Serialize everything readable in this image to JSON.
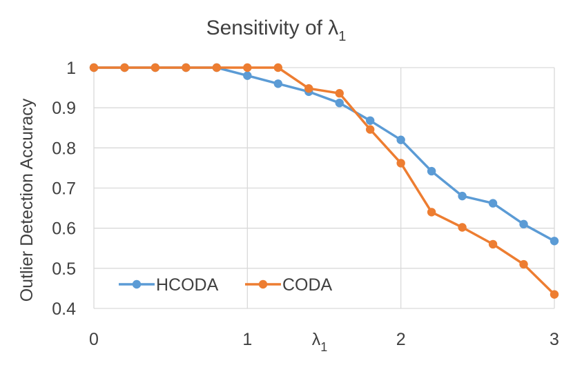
{
  "chart_data": {
    "type": "line",
    "title": "Sensitivity of λ",
    "title_subscript": "1",
    "xlabel": "λ",
    "xlabel_subscript": "1",
    "ylabel": "Outlier Detection Accuracy",
    "xlim": [
      0,
      3
    ],
    "ylim": [
      0.4,
      1.0
    ],
    "x_ticks": [
      0,
      1,
      2,
      3
    ],
    "y_ticks": [
      0.4,
      0.5,
      0.6,
      0.7,
      0.8,
      0.9,
      1.0
    ],
    "x_tick_labels": [
      "0",
      "1",
      "2",
      "3"
    ],
    "y_tick_labels": [
      "0.4",
      "0.5",
      "0.6",
      "0.7",
      "0.8",
      "0.9",
      "1"
    ],
    "grid": true,
    "legend_position": "bottom-left",
    "x": [
      0,
      0.2,
      0.4,
      0.6,
      0.8,
      1.0,
      1.2,
      1.4,
      1.6,
      1.8,
      2.0,
      2.2,
      2.4,
      2.6,
      2.8,
      3.0
    ],
    "series": [
      {
        "name": "HCODA",
        "color": "#5b9bd5",
        "values": [
          1.0,
          1.0,
          1.0,
          1.0,
          1.0,
          0.98,
          0.96,
          0.94,
          0.912,
          0.868,
          0.82,
          0.742,
          0.68,
          0.662,
          0.61,
          0.568
        ]
      },
      {
        "name": "CODA",
        "color": "#ed7d31",
        "values": [
          1.0,
          1.0,
          1.0,
          1.0,
          1.0,
          1.0,
          1.0,
          0.948,
          0.936,
          0.846,
          0.762,
          0.64,
          0.602,
          0.56,
          0.51,
          0.435
        ]
      }
    ]
  }
}
